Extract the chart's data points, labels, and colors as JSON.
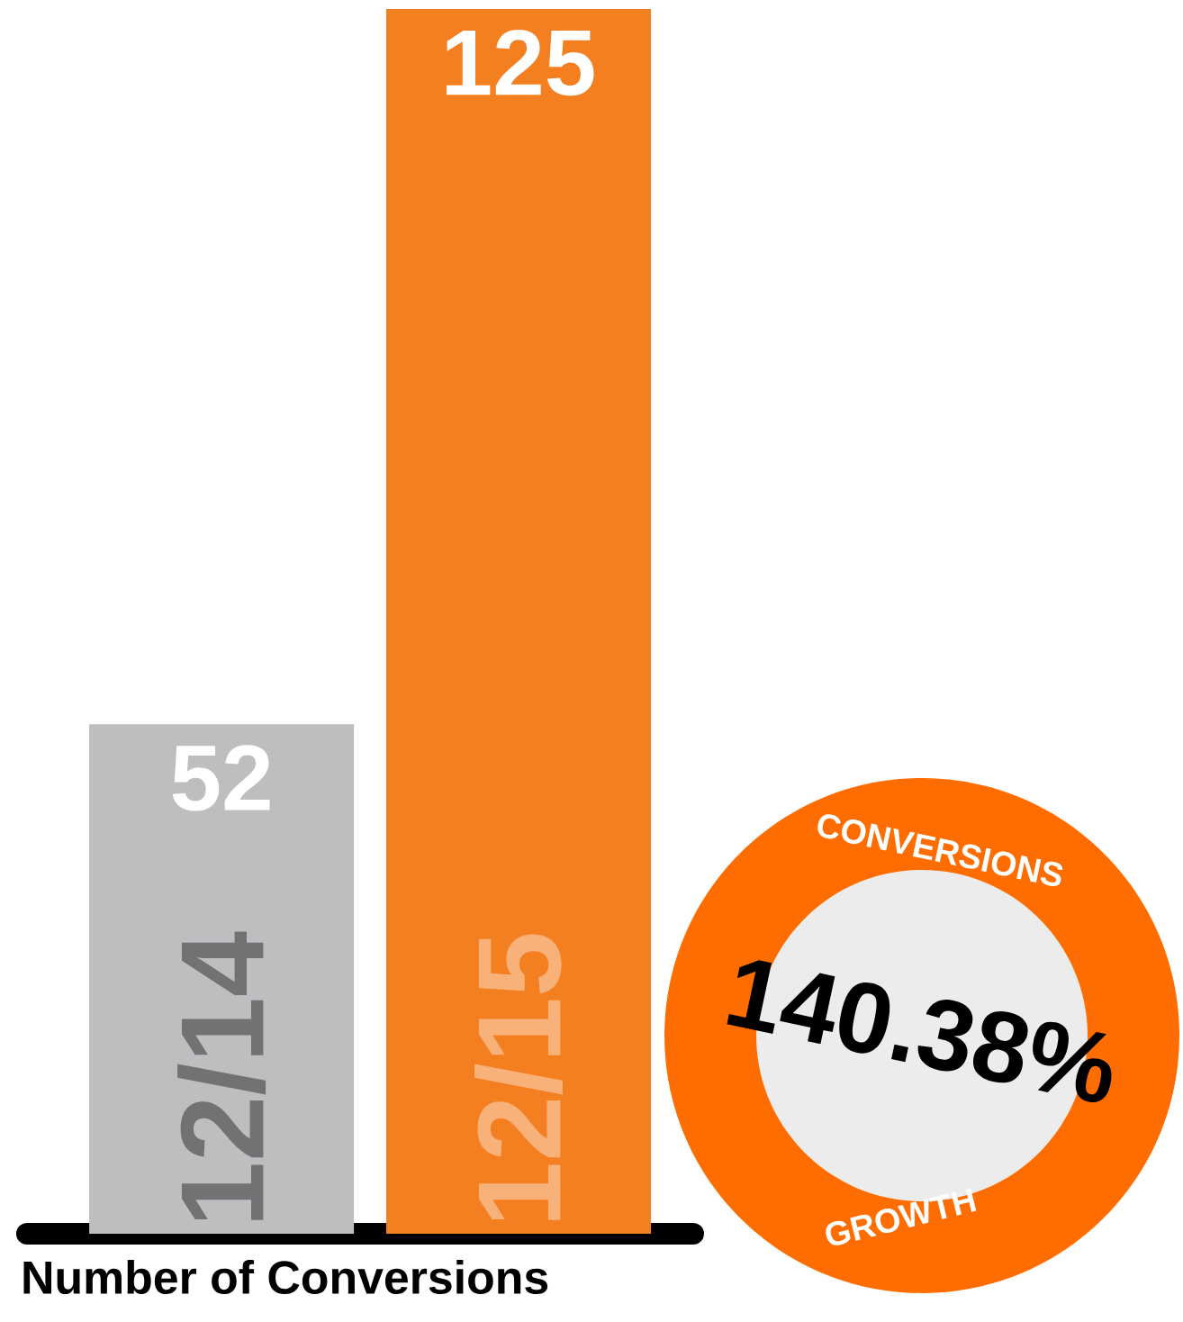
{
  "chart_data": {
    "type": "bar",
    "categories": [
      "12/14",
      "12/15"
    ],
    "values": [
      52,
      125
    ],
    "colors": [
      "#bcbec0",
      "#f47f20"
    ],
    "data_labels": true,
    "xlabel": "Number of Conversions",
    "annotations": [
      "CONVERSIONS",
      "140.38%",
      "GROWTH"
    ]
  }
}
